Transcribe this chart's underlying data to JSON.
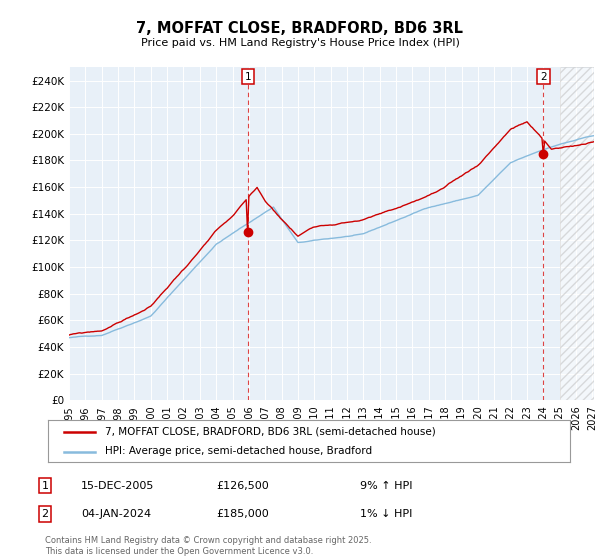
{
  "title": "7, MOFFAT CLOSE, BRADFORD, BD6 3RL",
  "subtitle": "Price paid vs. HM Land Registry's House Price Index (HPI)",
  "ylim": [
    0,
    250000
  ],
  "yticks": [
    0,
    20000,
    40000,
    60000,
    80000,
    100000,
    120000,
    140000,
    160000,
    180000,
    200000,
    220000,
    240000
  ],
  "ytick_labels": [
    "£0",
    "£20K",
    "£40K",
    "£60K",
    "£80K",
    "£100K",
    "£120K",
    "£140K",
    "£160K",
    "£180K",
    "£200K",
    "£220K",
    "£240K"
  ],
  "sale1_date": "15-DEC-2005",
  "sale1_price": 126500,
  "sale1_year": 2005.958,
  "sale1_hpi": "9% ↑ HPI",
  "sale2_date": "04-JAN-2024",
  "sale2_price": 185000,
  "sale2_year": 2024.008,
  "sale2_hpi": "1% ↓ HPI",
  "legend_line1": "7, MOFFAT CLOSE, BRADFORD, BD6 3RL (semi-detached house)",
  "legend_line2": "HPI: Average price, semi-detached house, Bradford",
  "footer": "Contains HM Land Registry data © Crown copyright and database right 2025.\nThis data is licensed under the Open Government Licence v3.0.",
  "line_color_red": "#cc0000",
  "line_color_blue": "#88bbdd",
  "background_color": "#ffffff",
  "chart_bg_color": "#e8f0f8",
  "grid_color": "#ffffff",
  "vline_color": "#dd4444",
  "future_start": 2025.0,
  "xmin": 1995,
  "xmax": 2027
}
